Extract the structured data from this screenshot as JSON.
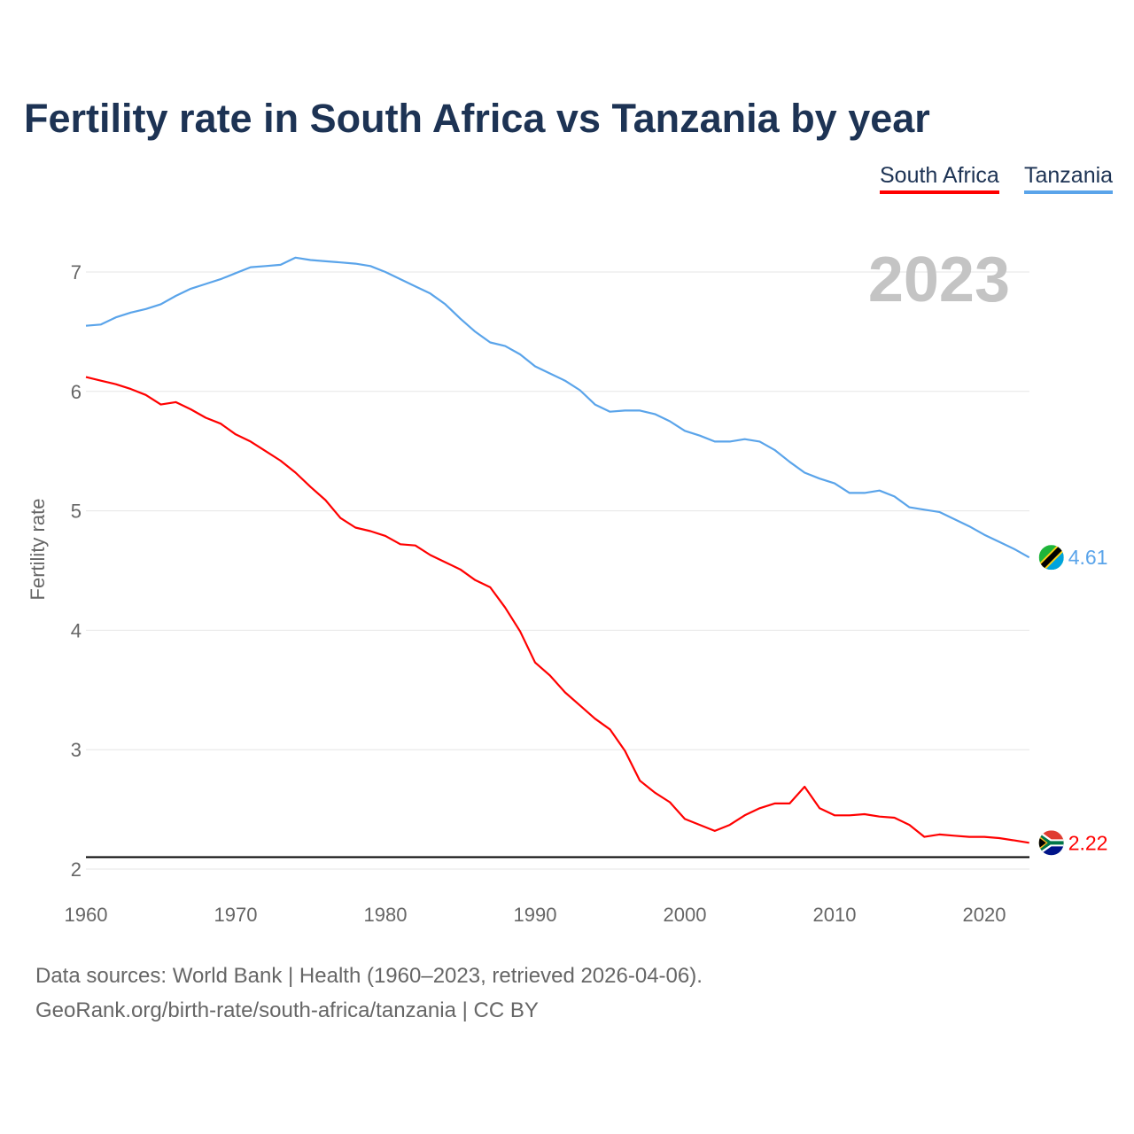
{
  "chart_data": {
    "type": "line",
    "title": "Fertility rate in South Africa vs Tanzania by year",
    "xlabel": "",
    "ylabel": "Fertility rate",
    "xlim": [
      1960,
      2023
    ],
    "ylim": [
      2,
      7.2
    ],
    "x_ticks": [
      "1960",
      "1970",
      "1980",
      "1990",
      "2000",
      "2010",
      "2020"
    ],
    "y_ticks": [
      "2",
      "3",
      "4",
      "5",
      "6",
      "7"
    ],
    "year_label": "2023",
    "reference_line": 2.1,
    "legend_position": "top-right",
    "x": [
      1960,
      1961,
      1962,
      1963,
      1964,
      1965,
      1966,
      1967,
      1968,
      1969,
      1970,
      1971,
      1972,
      1973,
      1974,
      1975,
      1976,
      1977,
      1978,
      1979,
      1980,
      1981,
      1982,
      1983,
      1984,
      1985,
      1986,
      1987,
      1988,
      1989,
      1990,
      1991,
      1992,
      1993,
      1994,
      1995,
      1996,
      1997,
      1998,
      1999,
      2000,
      2001,
      2002,
      2003,
      2004,
      2005,
      2006,
      2007,
      2008,
      2009,
      2010,
      2011,
      2012,
      2013,
      2014,
      2015,
      2016,
      2017,
      2018,
      2019,
      2020,
      2021,
      2022,
      2023
    ],
    "series": [
      {
        "name": "South Africa",
        "color": "#ff0000",
        "end_label": "2.22",
        "values": [
          6.12,
          6.09,
          6.06,
          6.02,
          5.97,
          5.89,
          5.91,
          5.85,
          5.78,
          5.73,
          5.64,
          5.58,
          5.5,
          5.42,
          5.32,
          5.2,
          5.09,
          4.94,
          4.86,
          4.83,
          4.79,
          4.72,
          4.71,
          4.63,
          4.57,
          4.51,
          4.42,
          4.36,
          4.19,
          3.99,
          3.73,
          3.62,
          3.48,
          3.37,
          3.26,
          3.17,
          2.99,
          2.74,
          2.64,
          2.56,
          2.42,
          2.37,
          2.32,
          2.37,
          2.45,
          2.51,
          2.55,
          2.55,
          2.69,
          2.51,
          2.45,
          2.45,
          2.46,
          2.44,
          2.43,
          2.37,
          2.27,
          2.29,
          2.28,
          2.27,
          2.27,
          2.26,
          2.24,
          2.22
        ]
      },
      {
        "name": "Tanzania",
        "color": "#5aa4ea",
        "end_label": "4.61",
        "values": [
          6.55,
          6.56,
          6.62,
          6.66,
          6.69,
          6.73,
          6.8,
          6.86,
          6.9,
          6.94,
          6.99,
          7.04,
          7.05,
          7.06,
          7.12,
          7.1,
          7.09,
          7.08,
          7.07,
          7.05,
          7.0,
          6.94,
          6.88,
          6.82,
          6.73,
          6.61,
          6.5,
          6.41,
          6.38,
          6.31,
          6.21,
          6.15,
          6.09,
          6.01,
          5.89,
          5.83,
          5.84,
          5.84,
          5.81,
          5.75,
          5.67,
          5.63,
          5.58,
          5.58,
          5.6,
          5.58,
          5.51,
          5.41,
          5.32,
          5.27,
          5.23,
          5.15,
          5.15,
          5.17,
          5.12,
          5.03,
          5.01,
          4.99,
          4.93,
          4.87,
          4.8,
          4.74,
          4.68,
          4.61
        ]
      }
    ]
  },
  "footer": {
    "source": "Data sources: World Bank | Health (1960–2023, retrieved 2026-04-06).",
    "link": "GeoRank.org/birth-rate/south-africa/tanzania | CC BY"
  }
}
